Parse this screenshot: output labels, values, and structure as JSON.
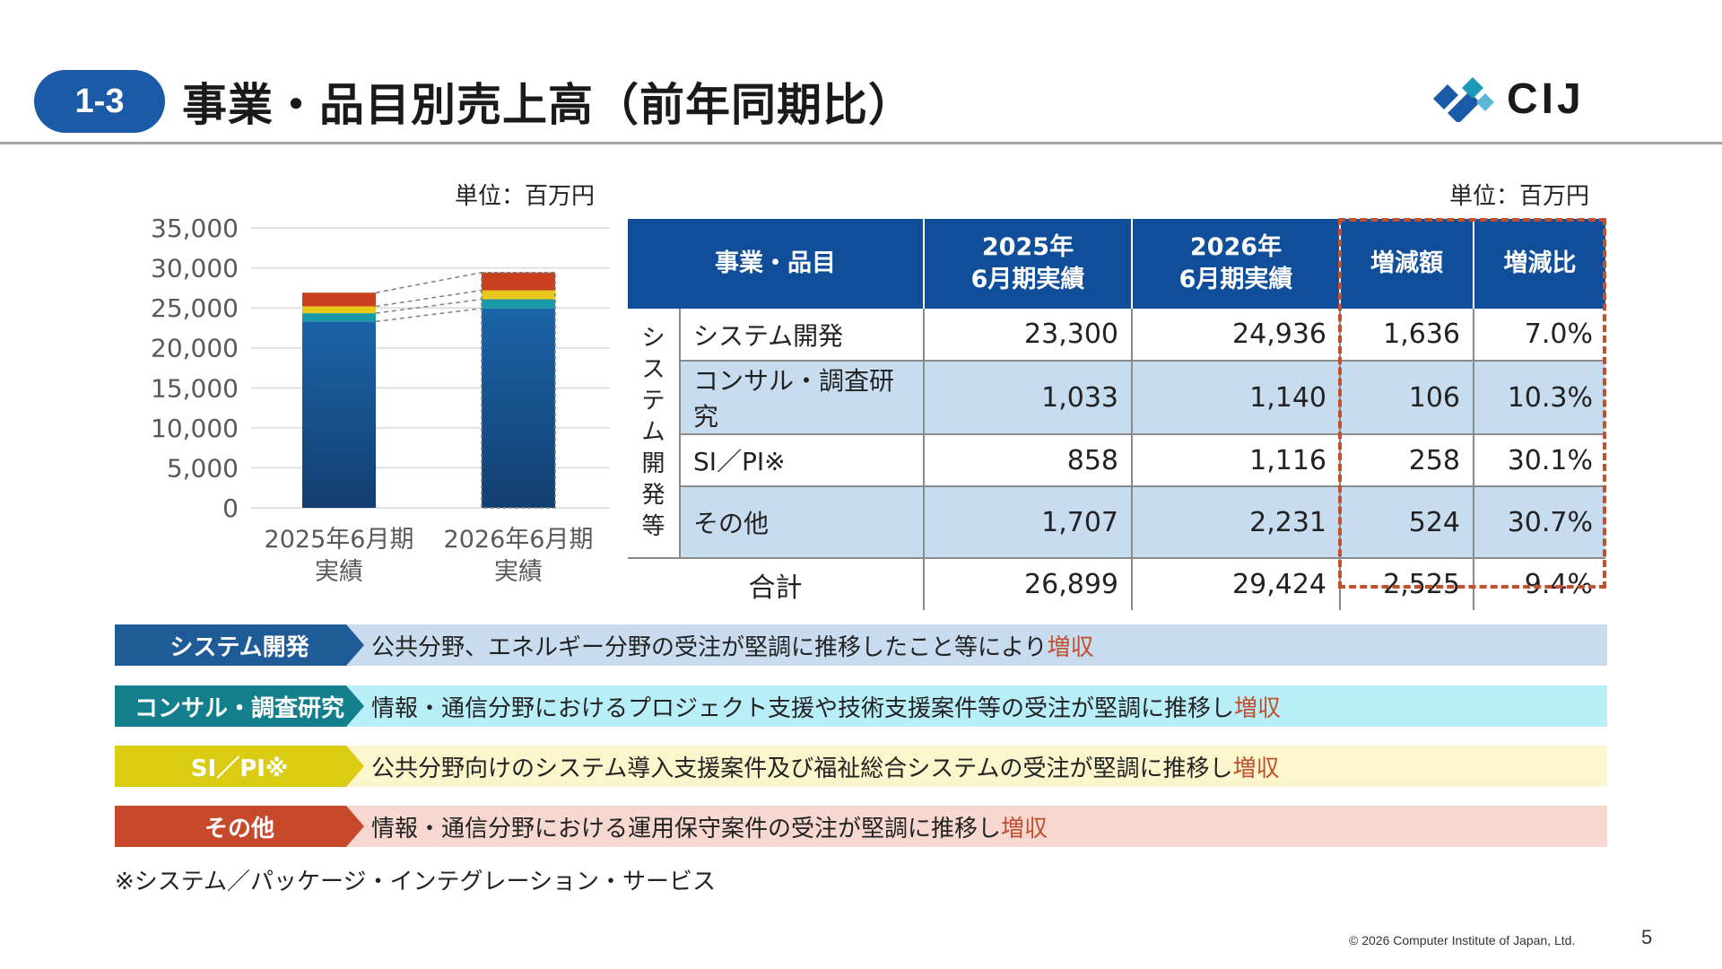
{
  "header": {
    "section_no": "1-3",
    "title": "事業・品目別売上高（前年同期比）",
    "logo_text": "CIJ"
  },
  "chart": {
    "unit": "単位：百万円"
  },
  "chart_data": {
    "type": "bar",
    "stacked": true,
    "categories": [
      "2025年6月期\n実績",
      "2026年6月期\n実績"
    ],
    "series": [
      {
        "name": "システム開発",
        "values": [
          23300,
          24936
        ],
        "color": "#1a5896"
      },
      {
        "name": "コンサル・調査研究",
        "values": [
          1033,
          1140
        ],
        "color": "#1a9aa8"
      },
      {
        "name": "SI／PI※",
        "values": [
          858,
          1116
        ],
        "color": "#e8c81a"
      },
      {
        "name": "その他",
        "values": [
          1707,
          2231
        ],
        "color": "#c8401e"
      }
    ],
    "ylim": [
      0,
      35000
    ],
    "yticks": [
      "0",
      "5,000",
      "10,000",
      "15,000",
      "20,000",
      "25,000",
      "30,000",
      "35,000"
    ],
    "grid": true,
    "connectors": true
  },
  "table": {
    "unit": "単位：百万円",
    "headers": [
      "事業・品目",
      "2025年\n6月期実績",
      "2026年\n6月期実績",
      "増減額",
      "増減比"
    ],
    "group_label": [
      "シ",
      "ス",
      "テ",
      "ム",
      "開",
      "発",
      "等"
    ],
    "rows": [
      {
        "item": "システム開発",
        "v2025": "23,300",
        "v2026": "24,936",
        "diff": "1,636",
        "ratio": "7.0%"
      },
      {
        "item": "コンサル・調査研究",
        "v2025": "1,033",
        "v2026": "1,140",
        "diff": "106",
        "ratio": "10.3%"
      },
      {
        "item": "SI／PI※",
        "v2025": "858",
        "v2026": "1,116",
        "diff": "258",
        "ratio": "30.1%"
      },
      {
        "item": "その他",
        "v2025": "1,707",
        "v2026": "2,231",
        "diff": "524",
        "ratio": "30.7%"
      }
    ],
    "total": {
      "item": "合計",
      "v2025": "26,899",
      "v2026": "29,424",
      "diff": "2,525",
      "ratio": "9.4%"
    }
  },
  "comments": [
    {
      "label": "システム開発",
      "text": "公共分野、エネルギー分野の受注が堅調に推移したこと等により",
      "highlight": "増収",
      "label_color": "#1f5b96",
      "bg_color": "#c9dcef"
    },
    {
      "label": "コンサル・調査研究",
      "text": "情報・通信分野におけるプロジェクト支援や技術支援案件等の受注が堅調に推移し",
      "highlight": "増収",
      "label_color": "#137f8c",
      "bg_color": "#b8eef8"
    },
    {
      "label": "SI／PI※",
      "text": "公共分野向けのシステム導入支援案件及び福祉総合システムの受注が堅調に推移し",
      "highlight": "増収",
      "label_color": "#d9cc12",
      "bg_color": "#fbf6cc"
    },
    {
      "label": "その他",
      "text": "情報・通信分野における運用保守案件の受注が堅調に推移し",
      "highlight": "増収",
      "label_color": "#c6492b",
      "bg_color": "#f6d8d1"
    }
  ],
  "footnote": "※システム／パッケージ・インテグレーション・サービス",
  "footer": {
    "copyright": "© 2026 Computer Institute of Japan, Ltd.",
    "page": "5"
  }
}
